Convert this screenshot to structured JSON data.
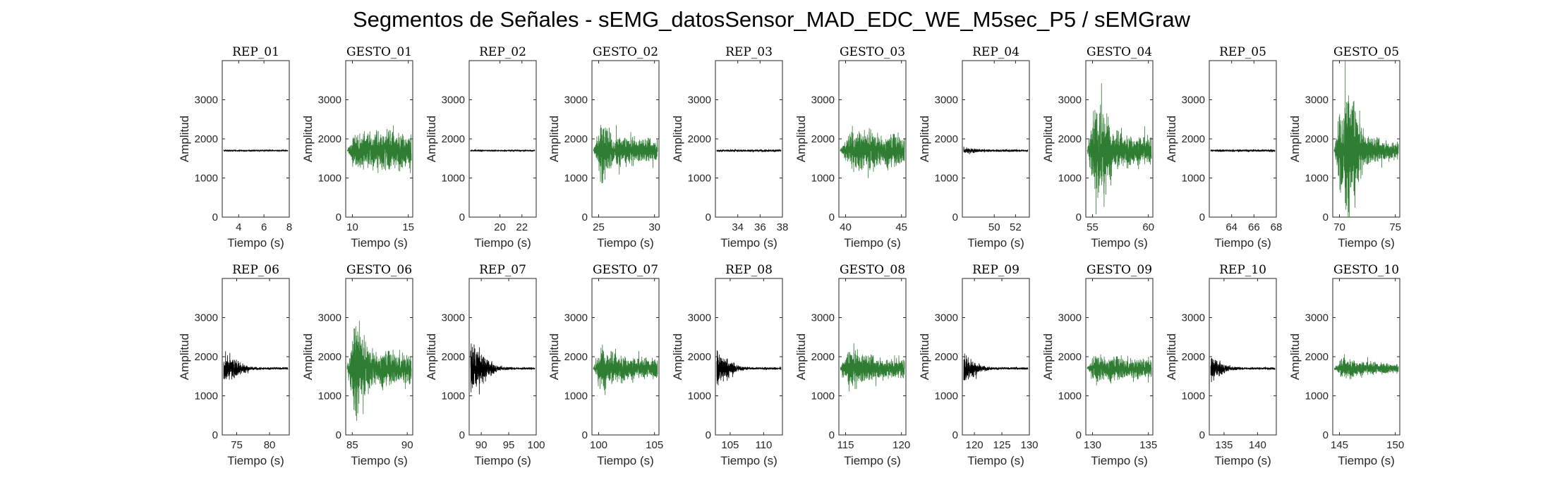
{
  "figure_title": "Segmentos de Señales - sEMG_datosSensor_MAD_EDC_WE_M5sec_P5 / sEMGraw",
  "colors": {
    "rep": "#000000",
    "gesto": "#2e7d32",
    "axis": "#262626"
  },
  "chart_data": [
    {
      "type": "line",
      "title": "REP_01",
      "kind": "rep",
      "xlabel": "Tiempo (s)",
      "ylabel": "Amplitud",
      "xlim": [
        2.7,
        8
      ],
      "xticks": [
        4,
        6,
        8
      ],
      "ylim": [
        0,
        4000
      ],
      "yticks": [
        0,
        1000,
        2000,
        3000
      ],
      "baseline": 1700,
      "amplitude": [
        30,
        30,
        30,
        30,
        30,
        30,
        30,
        30
      ]
    },
    {
      "type": "line",
      "title": "GESTO_01",
      "kind": "gesto",
      "xlabel": "Tiempo (s)",
      "ylabel": "Amplitud",
      "xlim": [
        9.4,
        15.4
      ],
      "xticks": [
        10,
        15
      ],
      "ylim": [
        0,
        4000
      ],
      "yticks": [
        0,
        1000,
        2000,
        3000
      ],
      "baseline": 1700,
      "amplitude": [
        30,
        650,
        700,
        650,
        700,
        650,
        600,
        600
      ]
    },
    {
      "type": "line",
      "title": "REP_02",
      "kind": "rep",
      "xlabel": "Tiempo (s)",
      "ylabel": "Amplitud",
      "xlim": [
        17.2,
        23.3
      ],
      "xticks": [
        20,
        22
      ],
      "ylim": [
        0,
        4000
      ],
      "yticks": [
        0,
        1000,
        2000,
        3000
      ],
      "baseline": 1700,
      "amplitude": [
        30,
        30,
        30,
        30,
        30,
        30,
        30,
        30
      ]
    },
    {
      "type": "line",
      "title": "GESTO_02",
      "kind": "gesto",
      "xlabel": "Tiempo (s)",
      "ylabel": "Amplitud",
      "xlim": [
        24.4,
        30.4
      ],
      "xticks": [
        25,
        30
      ],
      "ylim": [
        0,
        4000
      ],
      "yticks": [
        0,
        1000,
        2000,
        3000
      ],
      "baseline": 1700,
      "amplitude": [
        40,
        1200,
        500,
        450,
        450,
        400,
        400,
        400
      ]
    },
    {
      "type": "line",
      "title": "REP_03",
      "kind": "rep",
      "xlabel": "Tiempo (s)",
      "ylabel": "Amplitud",
      "xlim": [
        32,
        38
      ],
      "xticks": [
        34,
        36,
        38
      ],
      "ylim": [
        0,
        4000
      ],
      "yticks": [
        0,
        1000,
        2000,
        3000
      ],
      "baseline": 1700,
      "amplitude": [
        40,
        40,
        40,
        40,
        40,
        40,
        40,
        40
      ]
    },
    {
      "type": "line",
      "title": "GESTO_03",
      "kind": "gesto",
      "xlabel": "Tiempo (s)",
      "ylabel": "Amplitud",
      "xlim": [
        39.4,
        45.4
      ],
      "xticks": [
        40,
        45
      ],
      "ylim": [
        0,
        4000
      ],
      "yticks": [
        0,
        1000,
        2000,
        3000
      ],
      "baseline": 1700,
      "amplitude": [
        40,
        550,
        700,
        650,
        600,
        550,
        550,
        500
      ]
    },
    {
      "type": "line",
      "title": "REP_04",
      "kind": "rep",
      "xlabel": "Tiempo (s)",
      "ylabel": "Amplitud",
      "xlim": [
        47,
        53.3
      ],
      "xticks": [
        50,
        52
      ],
      "ylim": [
        0,
        4000
      ],
      "yticks": [
        0,
        1000,
        2000,
        3000
      ],
      "baseline": 1700,
      "amplitude": [
        120,
        80,
        50,
        40,
        40,
        40,
        40,
        40
      ]
    },
    {
      "type": "line",
      "title": "GESTO_04",
      "kind": "gesto",
      "xlabel": "Tiempo (s)",
      "ylabel": "Amplitud",
      "xlim": [
        54.4,
        60.4
      ],
      "xticks": [
        55,
        60
      ],
      "ylim": [
        0,
        4000
      ],
      "yticks": [
        0,
        1000,
        2000,
        3000
      ],
      "baseline": 1700,
      "amplitude": [
        40,
        1900,
        1300,
        700,
        550,
        500,
        500,
        450
      ]
    },
    {
      "type": "line",
      "title": "REP_05",
      "kind": "rep",
      "xlabel": "Tiempo (s)",
      "ylabel": "Amplitud",
      "xlim": [
        62,
        68
      ],
      "xticks": [
        64,
        66,
        68
      ],
      "ylim": [
        0,
        4000
      ],
      "yticks": [
        0,
        1000,
        2000,
        3000
      ],
      "baseline": 1700,
      "amplitude": [
        40,
        40,
        40,
        40,
        40,
        40,
        40,
        40
      ]
    },
    {
      "type": "line",
      "title": "GESTO_05",
      "kind": "gesto",
      "xlabel": "Tiempo (s)",
      "ylabel": "Amplitud",
      "xlim": [
        69.4,
        75.4
      ],
      "xticks": [
        70,
        75
      ],
      "ylim": [
        0,
        4000
      ],
      "yticks": [
        0,
        1000,
        2000,
        3000
      ],
      "baseline": 1700,
      "amplitude": [
        40,
        2000,
        1900,
        700,
        450,
        400,
        350,
        350
      ]
    },
    {
      "type": "line",
      "title": "REP_06",
      "kind": "rep",
      "xlabel": "Tiempo (s)",
      "ylabel": "Amplitud",
      "xlim": [
        72.8,
        83
      ],
      "xticks": [
        75,
        80
      ],
      "ylim": [
        0,
        4000
      ],
      "yticks": [
        0,
        1000,
        2000,
        3000
      ],
      "baseline": 1700,
      "amplitude": [
        480,
        380,
        200,
        60,
        40,
        40,
        40,
        40
      ]
    },
    {
      "type": "line",
      "title": "GESTO_06",
      "kind": "gesto",
      "xlabel": "Tiempo (s)",
      "ylabel": "Amplitud",
      "xlim": [
        84.4,
        90.5
      ],
      "xticks": [
        85,
        90
      ],
      "ylim": [
        0,
        4000
      ],
      "yticks": [
        0,
        1000,
        2000,
        3000
      ],
      "baseline": 1700,
      "amplitude": [
        40,
        1900,
        800,
        650,
        600,
        550,
        550,
        500
      ]
    },
    {
      "type": "line",
      "title": "REP_07",
      "kind": "rep",
      "xlabel": "Tiempo (s)",
      "ylabel": "Amplitud",
      "xlim": [
        87.8,
        100
      ],
      "xticks": [
        90,
        95,
        100
      ],
      "ylim": [
        0,
        4000
      ],
      "yticks": [
        0,
        1000,
        2000,
        3000
      ],
      "baseline": 1700,
      "amplitude": [
        1000,
        600,
        300,
        80,
        50,
        40,
        40,
        40
      ]
    },
    {
      "type": "line",
      "title": "GESTO_07",
      "kind": "gesto",
      "xlabel": "Tiempo (s)",
      "ylabel": "Amplitud",
      "xlim": [
        99.4,
        105.4
      ],
      "xticks": [
        100,
        105
      ],
      "ylim": [
        0,
        4000
      ],
      "yticks": [
        0,
        1000,
        2000,
        3000
      ],
      "baseline": 1700,
      "amplitude": [
        40,
        800,
        550,
        450,
        400,
        350,
        350,
        350
      ]
    },
    {
      "type": "line",
      "title": "REP_08",
      "kind": "rep",
      "xlabel": "Tiempo (s)",
      "ylabel": "Amplitud",
      "xlim": [
        102.8,
        112.8
      ],
      "xticks": [
        105,
        110
      ],
      "ylim": [
        0,
        4000
      ],
      "yticks": [
        0,
        1000,
        2000,
        3000
      ],
      "baseline": 1700,
      "amplitude": [
        650,
        400,
        150,
        60,
        40,
        40,
        40,
        40
      ]
    },
    {
      "type": "line",
      "title": "GESTO_08",
      "kind": "gesto",
      "xlabel": "Tiempo (s)",
      "ylabel": "Amplitud",
      "xlim": [
        114.4,
        120.4
      ],
      "xticks": [
        115,
        120
      ],
      "ylim": [
        0,
        4000
      ],
      "yticks": [
        0,
        1000,
        2000,
        3000
      ],
      "baseline": 1700,
      "amplitude": [
        40,
        650,
        550,
        450,
        400,
        380,
        350,
        350
      ]
    },
    {
      "type": "line",
      "title": "REP_09",
      "kind": "rep",
      "xlabel": "Tiempo (s)",
      "ylabel": "Amplitud",
      "xlim": [
        117.8,
        130
      ],
      "xticks": [
        120,
        125,
        130
      ],
      "ylim": [
        0,
        4000
      ],
      "yticks": [
        0,
        1000,
        2000,
        3000
      ],
      "baseline": 1700,
      "amplitude": [
        550,
        300,
        100,
        50,
        40,
        40,
        40,
        40
      ]
    },
    {
      "type": "line",
      "title": "GESTO_09",
      "kind": "gesto",
      "xlabel": "Tiempo (s)",
      "ylabel": "Amplitud",
      "xlim": [
        129.4,
        135.4
      ],
      "xticks": [
        130,
        135
      ],
      "ylim": [
        0,
        4000
      ],
      "yticks": [
        0,
        1000,
        2000,
        3000
      ],
      "baseline": 1700,
      "amplitude": [
        40,
        500,
        450,
        400,
        380,
        350,
        350,
        330
      ]
    },
    {
      "type": "line",
      "title": "REP_10",
      "kind": "rep",
      "xlabel": "Tiempo (s)",
      "ylabel": "Amplitud",
      "xlim": [
        132.8,
        142.8
      ],
      "xticks": [
        135,
        140
      ],
      "ylim": [
        0,
        4000
      ],
      "yticks": [
        0,
        1000,
        2000,
        3000
      ],
      "baseline": 1700,
      "amplitude": [
        450,
        250,
        80,
        50,
        40,
        40,
        40,
        40
      ]
    },
    {
      "type": "line",
      "title": "GESTO_10",
      "kind": "gesto",
      "xlabel": "Tiempo (s)",
      "ylabel": "Amplitud",
      "xlim": [
        144.4,
        150.4
      ],
      "xticks": [
        145,
        150
      ],
      "ylim": [
        0,
        4000
      ],
      "yticks": [
        0,
        1000,
        2000,
        3000
      ],
      "baseline": 1700,
      "amplitude": [
        40,
        380,
        300,
        250,
        220,
        200,
        180,
        150
      ]
    }
  ]
}
